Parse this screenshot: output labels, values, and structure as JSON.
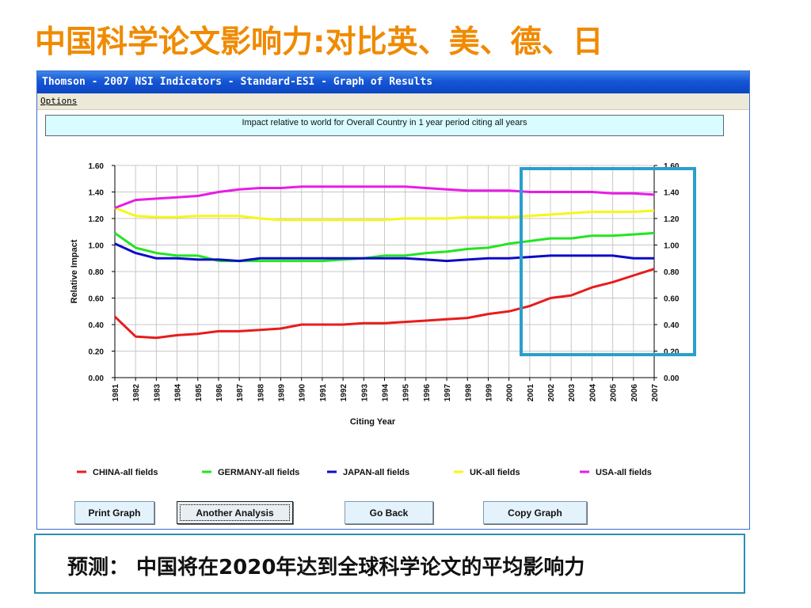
{
  "slide": {
    "title": "中国科学论文影响力:对比英、美、德、日",
    "footer_text": "预测：  中国将在2020年达到全球科学论文的平均影响力",
    "highlight_color": "#2a9fcc"
  },
  "window": {
    "title": "Thomson - 2007 NSI Indicators - Standard-ESI - Graph of Results",
    "menu": [
      "Options"
    ]
  },
  "buttons": {
    "print": "Print Graph",
    "another": "Another Analysis",
    "back": "Go Back",
    "copy": "Copy Graph"
  },
  "chart_data": {
    "type": "line",
    "title": "Impact relative to world for Overall Country in 1 year period citing all years",
    "xlabel": "Citing Year",
    "ylabel": "Relative Impact",
    "ylim": [
      0,
      1.6
    ],
    "yticks": [
      "0.00",
      "0.20",
      "0.40",
      "0.60",
      "0.80",
      "1.00",
      "1.20",
      "1.40",
      "1.60"
    ],
    "grid": true,
    "legend_position": "bottom",
    "x": [
      "1981",
      "1982",
      "1983",
      "1984",
      "1985",
      "1986",
      "1987",
      "1988",
      "1989",
      "1990",
      "1991",
      "1992",
      "1993",
      "1994",
      "1995",
      "1996",
      "1997",
      "1998",
      "1999",
      "2000",
      "2001",
      "2002",
      "2003",
      "2004",
      "2005",
      "2006",
      "2007"
    ],
    "series": [
      {
        "name": "CHINA-all fields",
        "color": "#e81c1c",
        "values": [
          0.46,
          0.31,
          0.3,
          0.32,
          0.33,
          0.35,
          0.35,
          0.36,
          0.37,
          0.4,
          0.4,
          0.4,
          0.41,
          0.41,
          0.42,
          0.43,
          0.44,
          0.45,
          0.48,
          0.5,
          0.54,
          0.6,
          0.62,
          0.68,
          0.72,
          0.77,
          0.82
        ]
      },
      {
        "name": "GERMANY-all fields",
        "color": "#22e522",
        "values": [
          1.09,
          0.98,
          0.94,
          0.92,
          0.92,
          0.88,
          0.88,
          0.88,
          0.88,
          0.88,
          0.88,
          0.89,
          0.9,
          0.92,
          0.92,
          0.94,
          0.95,
          0.97,
          0.98,
          1.01,
          1.03,
          1.05,
          1.05,
          1.07,
          1.07,
          1.08,
          1.09
        ]
      },
      {
        "name": "JAPAN-all fields",
        "color": "#0c0cc8",
        "values": [
          1.01,
          0.94,
          0.9,
          0.9,
          0.89,
          0.89,
          0.88,
          0.9,
          0.9,
          0.9,
          0.9,
          0.9,
          0.9,
          0.9,
          0.9,
          0.89,
          0.88,
          0.89,
          0.9,
          0.9,
          0.91,
          0.92,
          0.92,
          0.92,
          0.92,
          0.9,
          0.9
        ]
      },
      {
        "name": "UK-all fields",
        "color": "#f6f61a",
        "values": [
          1.28,
          1.22,
          1.21,
          1.21,
          1.22,
          1.22,
          1.22,
          1.2,
          1.19,
          1.19,
          1.19,
          1.19,
          1.19,
          1.19,
          1.2,
          1.2,
          1.2,
          1.21,
          1.21,
          1.21,
          1.22,
          1.23,
          1.24,
          1.25,
          1.25,
          1.25,
          1.26
        ]
      },
      {
        "name": "USA-all fields",
        "color": "#e81ce8",
        "values": [
          1.28,
          1.34,
          1.35,
          1.36,
          1.37,
          1.4,
          1.42,
          1.43,
          1.43,
          1.44,
          1.44,
          1.44,
          1.44,
          1.44,
          1.44,
          1.43,
          1.42,
          1.41,
          1.41,
          1.41,
          1.4,
          1.4,
          1.4,
          1.4,
          1.39,
          1.39,
          1.38
        ]
      }
    ]
  }
}
